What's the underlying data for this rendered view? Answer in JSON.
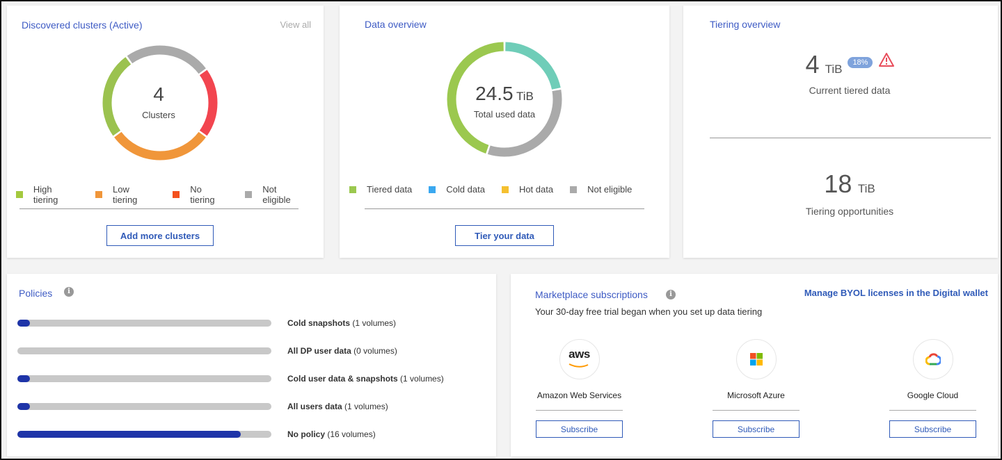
{
  "clusters": {
    "title": "Discovered clusters (Active)",
    "view_all": "View all",
    "count": "4",
    "count_label": "Clusters",
    "legend": [
      {
        "label": "High tiering",
        "color": "#a4c93e"
      },
      {
        "label": "Low tiering",
        "color": "#f0963a"
      },
      {
        "label": "No tiering",
        "color": "#f4511e"
      },
      {
        "label": "Not eligible",
        "color": "#aaaaaa"
      }
    ],
    "button": "Add more clusters"
  },
  "data_overview": {
    "title": "Data overview",
    "value": "24.5",
    "unit": "TiB",
    "label": "Total used data",
    "legend": [
      {
        "label": "Tiered data",
        "color": "#9bc84f"
      },
      {
        "label": "Cold data",
        "color": "#3aa8f0"
      },
      {
        "label": "Hot data",
        "color": "#f5c030"
      },
      {
        "label": "Not eligible",
        "color": "#aaaaaa"
      }
    ],
    "button": "Tier your data"
  },
  "tiering": {
    "title": "Tiering overview",
    "current_value": "4",
    "current_unit": "TiB",
    "badge": "18%",
    "current_label": "Current tiered data",
    "opp_value": "18",
    "opp_unit": "TiB",
    "opp_label": "Tiering opportunities"
  },
  "policies": {
    "title": "Policies",
    "info": "i",
    "items": [
      {
        "name": "Cold snapshots",
        "count": "(1 volumes)",
        "percent": 5
      },
      {
        "name": "All DP user data",
        "count": "(0 volumes)",
        "percent": 0
      },
      {
        "name": "Cold user data & snapshots",
        "count": "(1 volumes)",
        "percent": 5
      },
      {
        "name": "All users data",
        "count": "(1 volumes)",
        "percent": 5
      },
      {
        "name": "No policy",
        "count": "(16 volumes)",
        "percent": 88
      }
    ]
  },
  "marketplace": {
    "title": "Marketplace subscriptions",
    "info": "i",
    "byol_link": "Manage BYOL licenses in the Digital wallet",
    "trial": "Your 30-day free trial began when you set up data tiering",
    "providers": [
      {
        "name": "Amazon Web Services",
        "logo": "aws",
        "button": "Subscribe"
      },
      {
        "name": "Microsoft Azure",
        "logo": "microsoft",
        "button": "Subscribe"
      },
      {
        "name": "Google Cloud",
        "logo": "google-cloud",
        "button": "Subscribe"
      }
    ]
  },
  "chart_data": [
    {
      "type": "pie",
      "segments": [
        {
          "label": "Not eligible",
          "percent": 25,
          "color": "#aaaaaa"
        },
        {
          "label": "No tiering",
          "percent": 20,
          "color": "#f2454f"
        },
        {
          "label": "Low tiering",
          "percent": 30,
          "color": "#f0963a"
        },
        {
          "label": "High tiering",
          "percent": 25,
          "color": "#9bc24f"
        }
      ]
    },
    {
      "type": "pie",
      "segments": [
        {
          "percent": 22,
          "color": "#6fcdb8"
        },
        {
          "percent": 33,
          "color": "#aaaaaa"
        },
        {
          "label": "Tiered data",
          "percent": 45,
          "color": "#9bc84f"
        }
      ]
    }
  ]
}
